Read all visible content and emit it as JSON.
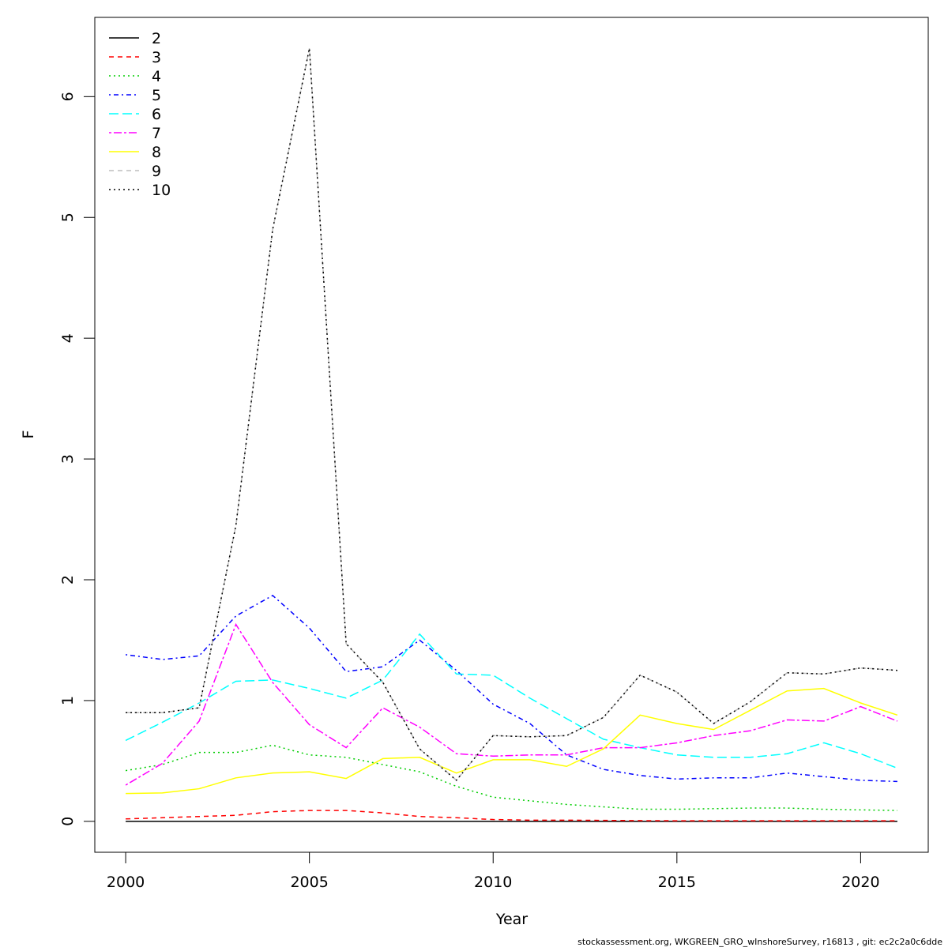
{
  "chart_data": {
    "type": "line",
    "x_label": "Year",
    "y_label": "F",
    "footer": "stockassessment.org, WKGREEN_GRO_wInshoreSurvey, r16813 , git: ec2c2a0c6dde",
    "x": [
      2000,
      2001,
      2002,
      2003,
      2004,
      2005,
      2006,
      2007,
      2008,
      2009,
      2010,
      2011,
      2012,
      2013,
      2014,
      2015,
      2016,
      2017,
      2018,
      2019,
      2020,
      2021
    ],
    "xlim": [
      1999.16,
      2021.84
    ],
    "xticks": [
      2000,
      2005,
      2010,
      2015,
      2020
    ],
    "ylim": [
      -0.256,
      6.656
    ],
    "yticks": [
      0,
      1,
      2,
      3,
      4,
      5,
      6
    ],
    "legend": "top-left",
    "grid": false,
    "series": [
      {
        "name": "2",
        "color": "#000000",
        "dash": "none",
        "values": [
          0,
          0,
          0,
          0,
          0,
          0,
          0,
          0,
          0,
          0,
          0,
          0,
          0,
          0,
          0,
          0,
          0,
          0,
          0,
          0,
          0,
          0
        ]
      },
      {
        "name": "3",
        "color": "#ff0000",
        "dash": "6 5",
        "values": [
          0.02,
          0.03,
          0.04,
          0.05,
          0.08,
          0.09,
          0.09,
          0.07,
          0.04,
          0.03,
          0.015,
          0.01,
          0.01,
          0.008,
          0.006,
          0.005,
          0.005,
          0.005,
          0.005,
          0.005,
          0.005,
          0.005
        ]
      },
      {
        "name": "4",
        "color": "#00cd00",
        "dash": "2 4",
        "values": [
          0.42,
          0.47,
          0.57,
          0.57,
          0.63,
          0.55,
          0.53,
          0.47,
          0.41,
          0.29,
          0.2,
          0.17,
          0.14,
          0.12,
          0.1,
          0.1,
          0.105,
          0.11,
          0.11,
          0.1,
          0.095,
          0.09
        ]
      },
      {
        "name": "5",
        "color": "#0000ff",
        "dash": "2 4 6 4",
        "values": [
          1.38,
          1.34,
          1.37,
          1.7,
          1.87,
          1.6,
          1.24,
          1.28,
          1.5,
          1.25,
          0.97,
          0.81,
          0.55,
          0.43,
          0.38,
          0.35,
          0.36,
          0.36,
          0.4,
          0.37,
          0.34,
          0.33
        ]
      },
      {
        "name": "6",
        "color": "#00ffff",
        "dash": "12 5",
        "values": [
          0.67,
          0.82,
          0.98,
          1.16,
          1.17,
          1.1,
          1.02,
          1.17,
          1.55,
          1.22,
          1.21,
          1.02,
          0.85,
          0.68,
          0.61,
          0.55,
          0.53,
          0.53,
          0.56,
          0.65,
          0.56,
          0.44
        ]
      },
      {
        "name": "7",
        "color": "#ff00ff",
        "dash": "3 3 10 3",
        "values": [
          0.3,
          0.48,
          0.83,
          1.63,
          1.15,
          0.8,
          0.61,
          0.94,
          0.78,
          0.56,
          0.54,
          0.55,
          0.55,
          0.61,
          0.61,
          0.65,
          0.71,
          0.75,
          0.84,
          0.83,
          0.95,
          0.83
        ]
      },
      {
        "name": "8",
        "color": "#ffff00",
        "dash": "none",
        "values": [
          0.23,
          0.235,
          0.27,
          0.36,
          0.4,
          0.41,
          0.355,
          0.52,
          0.53,
          0.4,
          0.51,
          0.51,
          0.455,
          0.6,
          0.88,
          0.81,
          0.76,
          0.92,
          1.08,
          1.1,
          0.98,
          0.88
        ]
      },
      {
        "name": "9",
        "color": "#bebebe",
        "dash": "6 5",
        "values": [
          0.9,
          0.9,
          0.94,
          2.45,
          4.9,
          6.4,
          1.47,
          1.15,
          0.6,
          0.34,
          0.71,
          0.7,
          0.71,
          0.86,
          1.21,
          1.07,
          0.81,
          0.99,
          1.23,
          1.22,
          1.27,
          1.25
        ]
      },
      {
        "name": "10",
        "color": "#000000",
        "dash": "2 4",
        "values": [
          0.9,
          0.9,
          0.94,
          2.45,
          4.9,
          6.4,
          1.47,
          1.15,
          0.6,
          0.34,
          0.71,
          0.7,
          0.71,
          0.86,
          1.21,
          1.07,
          0.81,
          0.99,
          1.23,
          1.22,
          1.27,
          1.25
        ]
      }
    ]
  }
}
